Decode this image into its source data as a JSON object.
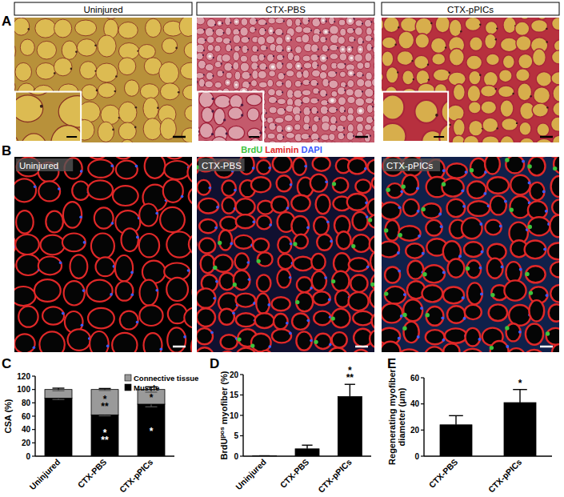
{
  "panel_a": {
    "label": "A",
    "images": [
      "Uninjured",
      "CTX-PBS",
      "CTX-pPICs"
    ]
  },
  "panel_b": {
    "label": "B",
    "stain": [
      {
        "text": "BrdU",
        "color": "#3cc43c"
      },
      {
        "text": "Laminin",
        "color": "#e02828"
      },
      {
        "text": "DAPI",
        "color": "#3a5cff"
      }
    ],
    "images": [
      "Uninjured",
      "CTX-PBS",
      "CTX-pPICs"
    ]
  },
  "chart_data": [
    {
      "panel": "C",
      "type": "bar",
      "stacked": true,
      "categories": [
        "Uninjured",
        "CTX-PBS",
        "CTX-pPICs"
      ],
      "y_label": [
        {
          "text": "CSA (%)"
        }
      ],
      "ylim": [
        0,
        120
      ],
      "yticks": [
        0,
        20,
        40,
        60,
        80,
        100,
        120
      ],
      "legend": "top-right",
      "series": [
        {
          "name": "Muscle",
          "color": "#000000",
          "values": [
            87,
            62,
            78
          ],
          "errors": [
            2,
            1.5,
            4
          ]
        },
        {
          "name": "Connective tissue",
          "color": "#9a9a9a",
          "values": [
            13,
            38,
            22
          ],
          "errors": [
            2,
            1.5,
            4
          ]
        }
      ],
      "annotations": [
        {
          "text": "*",
          "category": "CTX-PBS",
          "series": "Connective tissue"
        },
        {
          "text": "**",
          "category": "CTX-PBS",
          "series": "Connective tissue"
        },
        {
          "text": "*",
          "category": "CTX-PBS",
          "series": "Muscle"
        },
        {
          "text": "**",
          "category": "CTX-PBS",
          "series": "Muscle"
        },
        {
          "text": "*",
          "category": "CTX-pPICs",
          "series": "Connective tissue"
        },
        {
          "text": "*",
          "category": "CTX-pPICs",
          "series": "Muscle"
        }
      ]
    },
    {
      "panel": "D",
      "type": "bar",
      "categories": [
        "Uninjured",
        "CTX-PBS",
        "CTX-pPICs"
      ],
      "y_label": [
        {
          "text": "BrdU"
        },
        {
          "text": "pos",
          "sup": true
        },
        {
          "text": " myofiber (%)"
        }
      ],
      "ylim": [
        0,
        20
      ],
      "yticks": [
        0,
        5,
        10,
        15,
        20
      ],
      "series": [
        {
          "color": "#000000",
          "values": [
            0.1,
            1.8,
            14.6
          ],
          "errors": [
            0,
            0.9,
            3.0
          ]
        }
      ],
      "annotations": [
        {
          "text": "*",
          "category": "CTX-pPICs"
        },
        {
          "text": "**",
          "category": "CTX-pPICs"
        }
      ]
    },
    {
      "panel": "E",
      "type": "bar",
      "categories": [
        "CTX-PBS",
        "CTX-pPICs"
      ],
      "y_label": [
        {
          "text": "Regenerating myofiber"
        },
        {
          "text": "diameter (μm)",
          "newline": true
        }
      ],
      "ylim": [
        0,
        60
      ],
      "yticks": [
        0,
        20,
        40,
        60
      ],
      "series": [
        {
          "color": "#000000",
          "values": [
            24,
            41
          ],
          "errors": [
            7,
            10
          ]
        }
      ],
      "annotations": [
        {
          "text": "*",
          "category": "CTX-pPICs"
        }
      ]
    }
  ]
}
